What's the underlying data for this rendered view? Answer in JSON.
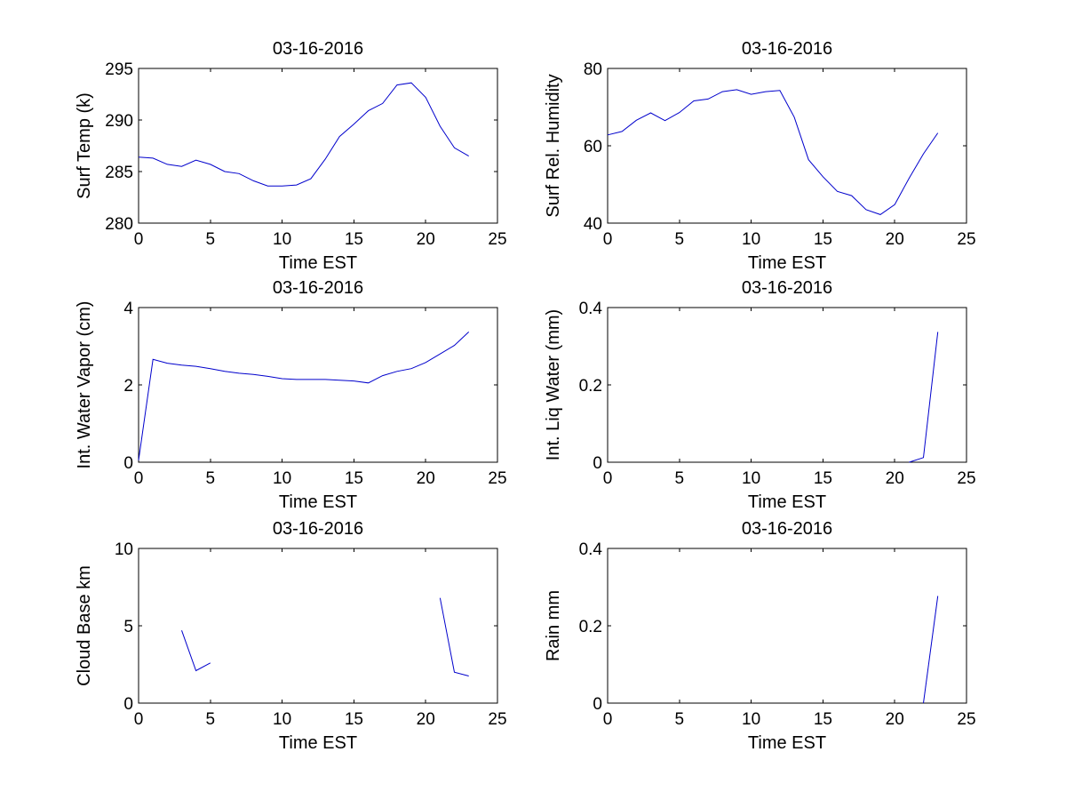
{
  "colors": {
    "series": "#0000cc",
    "axes": "#000000",
    "background": "#ffffff"
  },
  "chart_data": [
    {
      "type": "line",
      "title": "03-16-2016",
      "xlabel": "Time EST",
      "ylabel": "Surf Temp (k)",
      "xlim": [
        0,
        25
      ],
      "ylim": [
        280,
        295
      ],
      "xticks": [
        0,
        5,
        10,
        15,
        20,
        25
      ],
      "yticks": [
        280,
        285,
        290,
        295
      ],
      "grid": false,
      "series": [
        {
          "x": [
            0,
            1,
            2,
            3,
            4,
            5,
            6,
            7,
            8,
            9,
            10,
            11,
            12,
            13,
            14,
            15,
            16,
            17,
            18,
            19,
            20,
            21,
            22,
            23
          ],
          "y": [
            286.4,
            286.3,
            285.7,
            285.5,
            286.1,
            285.7,
            285.0,
            284.8,
            284.1,
            283.6,
            283.6,
            283.7,
            284.3,
            286.2,
            288.4,
            289.6,
            290.9,
            291.6,
            293.4,
            293.6,
            292.2,
            289.4,
            287.3,
            286.5
          ]
        }
      ]
    },
    {
      "type": "line",
      "title": "03-16-2016",
      "xlabel": "Time EST",
      "ylabel": "Surf Rel. Humidity",
      "xlim": [
        0,
        25
      ],
      "ylim": [
        40,
        80
      ],
      "xticks": [
        0,
        5,
        10,
        15,
        20,
        25
      ],
      "yticks": [
        40,
        60,
        80
      ],
      "grid": false,
      "series": [
        {
          "x": [
            0,
            1,
            2,
            3,
            4,
            5,
            6,
            7,
            8,
            9,
            10,
            11,
            12,
            13,
            14,
            15,
            16,
            17,
            18,
            19,
            20,
            21,
            22,
            23
          ],
          "y": [
            62.8,
            63.7,
            66.6,
            68.5,
            66.5,
            68.6,
            71.6,
            72.1,
            74.0,
            74.5,
            73.3,
            74.0,
            74.3,
            67.4,
            56.4,
            52.0,
            48.2,
            47.1,
            43.5,
            42.2,
            44.8,
            51.6,
            57.9,
            63.3
          ]
        }
      ]
    },
    {
      "type": "line",
      "title": "03-16-2016",
      "xlabel": "Time EST",
      "ylabel": "Int. Water Vapor (cm)",
      "xlim": [
        0,
        25
      ],
      "ylim": [
        0,
        4
      ],
      "xticks": [
        0,
        5,
        10,
        15,
        20,
        25
      ],
      "yticks": [
        0,
        2,
        4
      ],
      "grid": false,
      "series": [
        {
          "x": [
            0,
            1,
            2,
            3,
            4,
            5,
            6,
            7,
            8,
            9,
            10,
            11,
            12,
            13,
            14,
            15,
            16,
            17,
            18,
            19,
            20,
            21,
            22,
            23
          ],
          "y": [
            0.05,
            2.66,
            2.56,
            2.51,
            2.48,
            2.42,
            2.35,
            2.3,
            2.27,
            2.22,
            2.16,
            2.14,
            2.14,
            2.14,
            2.12,
            2.1,
            2.05,
            2.24,
            2.35,
            2.42,
            2.58,
            2.8,
            3.02,
            3.37
          ]
        }
      ]
    },
    {
      "type": "line",
      "title": "03-16-2016",
      "xlabel": "Time EST",
      "ylabel": "Int. Liq Water (mm)",
      "xlim": [
        0,
        25
      ],
      "ylim": [
        0,
        0.4
      ],
      "xticks": [
        0,
        5,
        10,
        15,
        20,
        25
      ],
      "yticks": [
        0,
        0.2,
        0.4
      ],
      "grid": false,
      "series": [
        {
          "x": [
            21,
            22,
            23
          ],
          "y": [
            0.0,
            0.012,
            0.337
          ]
        }
      ]
    },
    {
      "type": "line",
      "title": "03-16-2016",
      "xlabel": "Time EST",
      "ylabel": "Cloud Base km",
      "xlim": [
        0,
        25
      ],
      "ylim": [
        0,
        10
      ],
      "xticks": [
        0,
        5,
        10,
        15,
        20,
        25
      ],
      "yticks": [
        0,
        5,
        10
      ],
      "grid": false,
      "series": [
        {
          "x": [
            3,
            4,
            5
          ],
          "y": [
            4.7,
            2.1,
            2.6
          ]
        },
        {
          "x": [
            21,
            22,
            23
          ],
          "y": [
            6.8,
            2.0,
            1.75
          ]
        }
      ]
    },
    {
      "type": "line",
      "title": "03-16-2016",
      "xlabel": "Time EST",
      "ylabel": "Rain mm",
      "xlim": [
        0,
        25
      ],
      "ylim": [
        0,
        0.4
      ],
      "xticks": [
        0,
        5,
        10,
        15,
        20,
        25
      ],
      "yticks": [
        0,
        0.2,
        0.4
      ],
      "grid": false,
      "series": [
        {
          "x": [
            22,
            23
          ],
          "y": [
            0.0,
            0.277
          ]
        }
      ]
    }
  ]
}
